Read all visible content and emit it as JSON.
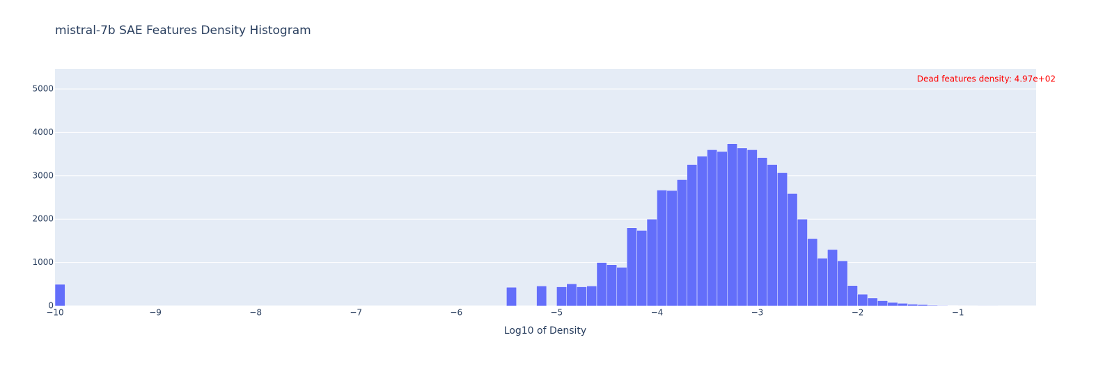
{
  "chart_data": {
    "type": "histogram",
    "title": "mistral-7b SAE Features Density Histogram",
    "x_label": "Log10 of Density",
    "annotation": "Dead features density: 4.97e+02",
    "color": "#636efa",
    "grid": true,
    "bins": [
      -10,
      -9.9,
      -9.8,
      -9.7,
      -9.6,
      -9.5,
      -9.4,
      -9.3,
      -9.2,
      -9.1,
      -9,
      -8.9,
      -8.8,
      -8.7,
      -8.6,
      -8.5,
      -8.4,
      -8.3,
      -8.2,
      -8.1,
      -8,
      -7.9,
      -7.8,
      -7.7,
      -7.6,
      -7.5,
      -7.4,
      -7.3,
      -7.2,
      -7.1,
      -7,
      -6.9,
      -6.8,
      -6.7,
      -6.6,
      -6.5,
      -6.4,
      -6.3,
      -6.2,
      -6.1,
      -6,
      -5.9,
      -5.8,
      -5.7,
      -5.6,
      -5.5,
      -5.4,
      -5.3,
      -5.2,
      -5.1,
      -5,
      -4.9,
      -4.8,
      -4.7,
      -4.6,
      -4.5,
      -4.4,
      -4.3,
      -4.2,
      -4.1,
      -4,
      -3.9,
      -3.8,
      -3.7,
      -3.6,
      -3.5,
      -3.4,
      -3.3,
      -3.2,
      -3.1,
      -3,
      -2.9,
      -2.8,
      -2.7,
      -2.6,
      -2.5,
      -2.4,
      -2.3,
      -2.2,
      -2.1,
      -2,
      -1.9,
      -1.8,
      -1.7,
      -1.6,
      -1.5,
      -1.4,
      -1.3,
      -1.2,
      -1.1,
      -1,
      -0.9,
      -0.8,
      -0.7,
      -0.6,
      -0.5
    ],
    "values": [
      497,
      0,
      0,
      0,
      0,
      0,
      0,
      0,
      0,
      0,
      0,
      0,
      0,
      0,
      0,
      0,
      0,
      0,
      0,
      0,
      0,
      0,
      0,
      0,
      0,
      0,
      0,
      0,
      0,
      0,
      0,
      0,
      0,
      0,
      0,
      0,
      0,
      0,
      0,
      0,
      0,
      0,
      0,
      0,
      0,
      430,
      0,
      0,
      460,
      0,
      440,
      510,
      440,
      460,
      1000,
      950,
      890,
      1800,
      1740,
      2000,
      2670,
      2660,
      2910,
      3260,
      3450,
      3600,
      3560,
      3740,
      3640,
      3600,
      3420,
      3260,
      3070,
      2590,
      2000,
      1550,
      1100,
      1300,
      1040,
      470,
      270,
      180,
      120,
      80,
      60,
      40,
      30,
      15,
      10,
      8,
      5,
      4,
      2,
      1,
      0
    ],
    "xlim": [
      -10,
      -0.22
    ],
    "ylim": [
      0,
      5465
    ],
    "xticks": [
      {
        "value": -10,
        "label": "−10"
      },
      {
        "value": -9,
        "label": "−9"
      },
      {
        "value": -8,
        "label": "−8"
      },
      {
        "value": -7,
        "label": "−7"
      },
      {
        "value": -6,
        "label": "−6"
      },
      {
        "value": -5,
        "label": "−5"
      },
      {
        "value": -4,
        "label": "−4"
      },
      {
        "value": -3,
        "label": "−3"
      },
      {
        "value": -2,
        "label": "−2"
      },
      {
        "value": -1,
        "label": "−1"
      }
    ],
    "yticks": [
      0,
      1000,
      2000,
      3000,
      4000,
      5000
    ]
  }
}
